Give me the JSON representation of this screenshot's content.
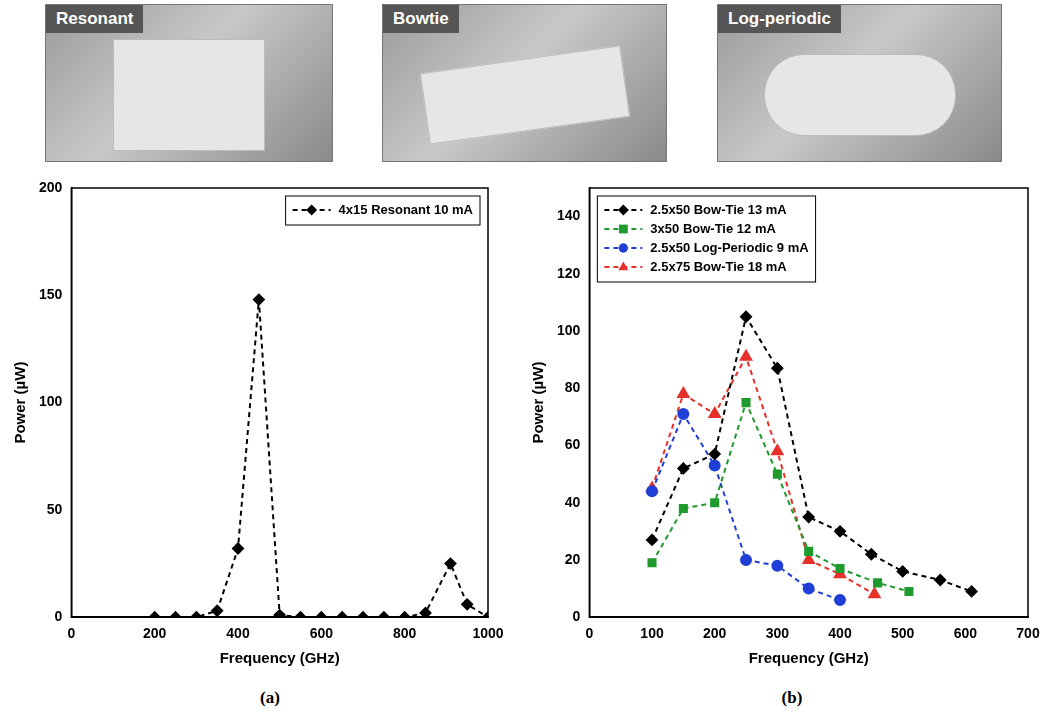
{
  "photos": [
    "Resonant",
    "Bowtie",
    "Log-periodic"
  ],
  "chart_data": [
    {
      "type": "line",
      "caption": "(a)",
      "x_label": "Frequency (GHz)",
      "y_label": "Power (µW)",
      "xlim": [
        0,
        1000
      ],
      "xticks": [
        0,
        200,
        400,
        600,
        800,
        1000
      ],
      "ylim": [
        0,
        200
      ],
      "yticks": [
        0,
        50,
        100,
        150,
        200
      ],
      "grid": false,
      "legend": "top-right",
      "series": [
        {
          "name": "4x15 Resonant 10 mA",
          "color": "#000000",
          "marker": "diamond",
          "line_style": "dashed",
          "x": [
            200,
            250,
            300,
            350,
            400,
            450,
            500,
            550,
            600,
            650,
            700,
            750,
            800,
            850,
            910,
            950,
            1000
          ],
          "values": [
            0,
            0,
            0,
            3,
            32,
            148,
            1,
            0,
            0,
            0,
            0,
            0,
            0,
            2,
            25,
            6,
            0
          ]
        }
      ]
    },
    {
      "type": "line",
      "caption": "(b)",
      "x_label": "Frequency (GHz)",
      "y_label": "Power (µW)",
      "xlim": [
        0,
        700
      ],
      "xticks": [
        0,
        100,
        200,
        300,
        400,
        500,
        600,
        700
      ],
      "ylim": [
        0,
        150
      ],
      "yticks": [
        0,
        20,
        40,
        60,
        80,
        100,
        120,
        140
      ],
      "grid": false,
      "legend": "top-left",
      "series": [
        {
          "name": "2.5x50 Bow-Tie 13 mA",
          "color": "#000000",
          "marker": "diamond",
          "line_style": "dashed",
          "x": [
            100,
            150,
            200,
            250,
            300,
            350,
            400,
            450,
            500,
            560,
            610
          ],
          "values": [
            27,
            52,
            57,
            105,
            87,
            35,
            30,
            22,
            16,
            13,
            9
          ]
        },
        {
          "name": "3x50 Bow-Tie 12 mA",
          "color": "#1f9a2e",
          "marker": "square",
          "line_style": "dashed",
          "x": [
            100,
            150,
            200,
            250,
            300,
            350,
            400,
            460,
            510
          ],
          "values": [
            19,
            38,
            40,
            75,
            50,
            23,
            17,
            12,
            9
          ]
        },
        {
          "name": "2.5x50 Log-Periodic 9 mA",
          "color": "#1f3fd6",
          "marker": "circle",
          "line_style": "dashed",
          "x": [
            100,
            150,
            200,
            250,
            300,
            350,
            400
          ],
          "values": [
            44,
            71,
            53,
            20,
            18,
            10,
            6
          ]
        },
        {
          "name": "2.5x75 Bow-Tie 18 mA",
          "color": "#e8302a",
          "marker": "triangle",
          "line_style": "dashed",
          "x": [
            100,
            150,
            200,
            250,
            300,
            350,
            400,
            455
          ],
          "values": [
            45,
            78,
            71,
            91,
            58,
            20,
            15,
            8
          ]
        }
      ]
    }
  ]
}
